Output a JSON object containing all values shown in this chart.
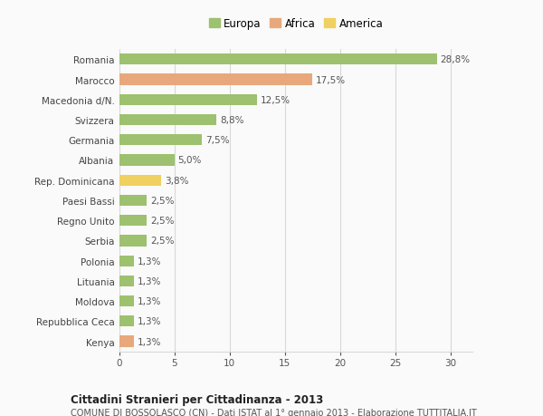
{
  "categories": [
    "Kenya",
    "Repubblica Ceca",
    "Moldova",
    "Lituania",
    "Polonia",
    "Serbia",
    "Regno Unito",
    "Paesi Bassi",
    "Rep. Dominicana",
    "Albania",
    "Germania",
    "Svizzera",
    "Macedonia d/N.",
    "Marocco",
    "Romania"
  ],
  "values": [
    1.3,
    1.3,
    1.3,
    1.3,
    1.3,
    2.5,
    2.5,
    2.5,
    3.8,
    5.0,
    7.5,
    8.8,
    12.5,
    17.5,
    28.8
  ],
  "colors": [
    "#e8a87c",
    "#9dc16e",
    "#9dc16e",
    "#9dc16e",
    "#9dc16e",
    "#9dc16e",
    "#9dc16e",
    "#9dc16e",
    "#f0d060",
    "#9dc16e",
    "#9dc16e",
    "#9dc16e",
    "#9dc16e",
    "#e8a87c",
    "#9dc16e"
  ],
  "label_texts": [
    "1,3%",
    "1,3%",
    "1,3%",
    "1,3%",
    "1,3%",
    "2,5%",
    "2,5%",
    "2,5%",
    "3,8%",
    "5,0%",
    "7,5%",
    "8,8%",
    "12,5%",
    "17,5%",
    "28,8%"
  ],
  "legend_labels": [
    "Europa",
    "Africa",
    "America"
  ],
  "legend_colors": [
    "#9dc16e",
    "#e8a87c",
    "#f0d060"
  ],
  "title": "Cittadini Stranieri per Cittadinanza - 2013",
  "subtitle": "COMUNE DI BOSSOLASCO (CN) - Dati ISTAT al 1° gennaio 2013 - Elaborazione TUTTITALIA.IT",
  "xlim": [
    0,
    32
  ],
  "background_color": "#fafafa",
  "grid_color": "#d8d8d8"
}
